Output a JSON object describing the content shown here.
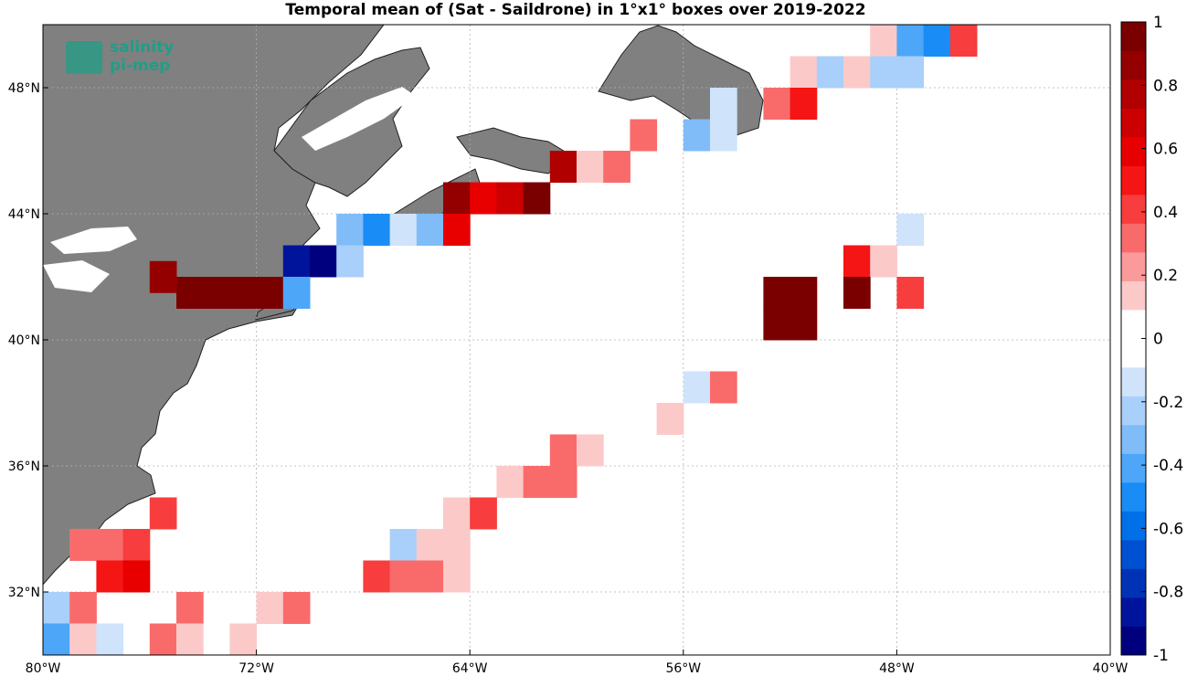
{
  "chart_data": {
    "type": "heatmap",
    "title": "Temporal mean of (Sat - Saildrone) in 1°x1° boxes over 2019-2022",
    "lon_range": [
      -80,
      -40
    ],
    "lat_range": [
      30,
      50
    ],
    "lon_ticks": [
      -80,
      -72,
      -64,
      -56,
      -48,
      -40
    ],
    "lat_ticks": [
      32,
      36,
      40,
      44,
      48
    ],
    "lon_tick_labels": [
      "80°W",
      "72°W",
      "64°W",
      "56°W",
      "48°W",
      "40°W"
    ],
    "lat_tick_labels": [
      "32°N",
      "36°N",
      "40°N",
      "44°N",
      "48°N"
    ],
    "grid": true,
    "land_color": "#808080",
    "colorbar": {
      "range": [
        -1,
        1
      ],
      "tick_values": [
        1,
        0.8,
        0.6,
        0.4,
        0.2,
        0,
        -0.2,
        -0.4,
        -0.6,
        -0.8,
        -1
      ],
      "tick_labels": [
        "1",
        "0.8",
        "0.6",
        "0.4",
        "0.2",
        "0",
        "-0.2",
        "-0.4",
        "-0.6",
        "-0.8",
        "-1"
      ],
      "colors": [
        "#00007f",
        "#00149b",
        "#0032b6",
        "#0050d2",
        "#0070e8",
        "#1a8cf5",
        "#4da6f8",
        "#80bcf8",
        "#a9d0fa",
        "#cfe3fb",
        "#ffffff",
        "#ffffff",
        "#fcc9c9",
        "#fb9a9a",
        "#f96b6b",
        "#f73d3d",
        "#f51515",
        "#e80000",
        "#cc0000",
        "#b00000",
        "#940000",
        "#7a0000"
      ]
    },
    "cells": [
      {
        "lon": -49,
        "lat": 49,
        "value": 0.1
      },
      {
        "lon": -48,
        "lat": 49,
        "value": -0.4
      },
      {
        "lon": -47,
        "lat": 49,
        "value": -0.5
      },
      {
        "lon": -46,
        "lat": 49,
        "value": 0.4
      },
      {
        "lon": -52,
        "lat": 48,
        "value": 0.1
      },
      {
        "lon": -51,
        "lat": 48,
        "value": -0.25
      },
      {
        "lon": -50,
        "lat": 48,
        "value": 0.1
      },
      {
        "lon": -49,
        "lat": 48,
        "value": -0.2
      },
      {
        "lon": -48,
        "lat": 48,
        "value": -0.2
      },
      {
        "lon": -55,
        "lat": 47,
        "value": -0.1
      },
      {
        "lon": -53,
        "lat": 47,
        "value": 0.3
      },
      {
        "lon": -52,
        "lat": 47,
        "value": 0.5
      },
      {
        "lon": -58,
        "lat": 46,
        "value": 0.3
      },
      {
        "lon": -56,
        "lat": 46,
        "value": -0.35
      },
      {
        "lon": -55,
        "lat": 46,
        "value": -0.1
      },
      {
        "lon": -61,
        "lat": 45,
        "value": 0.8
      },
      {
        "lon": -60,
        "lat": 45,
        "value": 0.15
      },
      {
        "lon": -59,
        "lat": 45,
        "value": 0.3
      },
      {
        "lon": -65,
        "lat": 44,
        "value": 0.9
      },
      {
        "lon": -64,
        "lat": 44,
        "value": 0.55
      },
      {
        "lon": -63,
        "lat": 44,
        "value": 0.7
      },
      {
        "lon": -62,
        "lat": 44,
        "value": 0.95
      },
      {
        "lon": -69,
        "lat": 43,
        "value": -0.3
      },
      {
        "lon": -68,
        "lat": 43,
        "value": -0.5
      },
      {
        "lon": -67,
        "lat": 43,
        "value": -0.1
      },
      {
        "lon": -66,
        "lat": 43,
        "value": -0.35
      },
      {
        "lon": -65,
        "lat": 43,
        "value": 0.55
      },
      {
        "lon": -71,
        "lat": 42,
        "value": -0.85
      },
      {
        "lon": -70,
        "lat": 42,
        "value": -1.0
      },
      {
        "lon": -69,
        "lat": 42,
        "value": -0.25
      },
      {
        "lon": -75,
        "lat": 41,
        "value": 1.0
      },
      {
        "lon": -74,
        "lat": 41,
        "value": 1.0
      },
      {
        "lon": -73,
        "lat": 41,
        "value": 1.0
      },
      {
        "lon": -72,
        "lat": 41,
        "value": 1.0
      },
      {
        "lon": -71,
        "lat": 41,
        "value": -0.45
      },
      {
        "lon": -76,
        "lat": 41.5,
        "value": 0.9
      },
      {
        "lon": -50,
        "lat": 42,
        "value": 0.5
      },
      {
        "lon": -49,
        "lat": 42,
        "value": 0.15
      },
      {
        "lon": -48,
        "lat": 43,
        "value": -0.1
      },
      {
        "lon": -53,
        "lat": 41,
        "value": 1.0
      },
      {
        "lon": -52,
        "lat": 41,
        "value": 1.0
      },
      {
        "lon": -53,
        "lat": 40,
        "value": 1.0
      },
      {
        "lon": -52,
        "lat": 40,
        "value": 1.0
      },
      {
        "lon": -50,
        "lat": 41,
        "value": 0.95
      },
      {
        "lon": -48,
        "lat": 41,
        "value": 0.45
      },
      {
        "lon": -56,
        "lat": 38,
        "value": -0.1
      },
      {
        "lon": -55,
        "lat": 38,
        "value": 0.3
      },
      {
        "lon": -57,
        "lat": 37,
        "value": 0.15
      },
      {
        "lon": -61,
        "lat": 36,
        "value": 0.3
      },
      {
        "lon": -60,
        "lat": 36,
        "value": 0.15
      },
      {
        "lon": -63,
        "lat": 35,
        "value": 0.15
      },
      {
        "lon": -62,
        "lat": 35,
        "value": 0.3
      },
      {
        "lon": -61,
        "lat": 35,
        "value": 0.3
      },
      {
        "lon": -65,
        "lat": 34,
        "value": 0.15
      },
      {
        "lon": -64,
        "lat": 34,
        "value": 0.4
      },
      {
        "lon": -67,
        "lat": 33,
        "value": -0.25
      },
      {
        "lon": -66,
        "lat": 33,
        "value": 0.15
      },
      {
        "lon": -65,
        "lat": 33,
        "value": 0.15
      },
      {
        "lon": -68,
        "lat": 32,
        "value": 0.45
      },
      {
        "lon": -67,
        "lat": 32,
        "value": 0.3
      },
      {
        "lon": -66,
        "lat": 32,
        "value": 0.3
      },
      {
        "lon": -65,
        "lat": 32,
        "value": 0.15
      },
      {
        "lon": -76,
        "lat": 34,
        "value": 0.45
      },
      {
        "lon": -79,
        "lat": 33,
        "value": 0.3
      },
      {
        "lon": -78,
        "lat": 33,
        "value": 0.3
      },
      {
        "lon": -77,
        "lat": 33,
        "value": 0.45
      },
      {
        "lon": -78,
        "lat": 32,
        "value": 0.5
      },
      {
        "lon": -77,
        "lat": 32,
        "value": 0.55
      },
      {
        "lon": -80,
        "lat": 31,
        "value": -0.25
      },
      {
        "lon": -79,
        "lat": 31,
        "value": 0.3
      },
      {
        "lon": -75,
        "lat": 31,
        "value": 0.3
      },
      {
        "lon": -72,
        "lat": 31,
        "value": 0.15
      },
      {
        "lon": -71,
        "lat": 31,
        "value": 0.3
      },
      {
        "lon": -80,
        "lat": 30,
        "value": -0.45
      },
      {
        "lon": -79,
        "lat": 30,
        "value": 0.15
      },
      {
        "lon": -78,
        "lat": 30,
        "value": -0.1
      },
      {
        "lon": -76,
        "lat": 30,
        "value": 0.3
      },
      {
        "lon": -75,
        "lat": 30,
        "value": 0.15
      },
      {
        "lon": -73,
        "lat": 30,
        "value": 0.15
      }
    ]
  },
  "logo": {
    "line1": "salinity",
    "line2": "pi-mep"
  }
}
